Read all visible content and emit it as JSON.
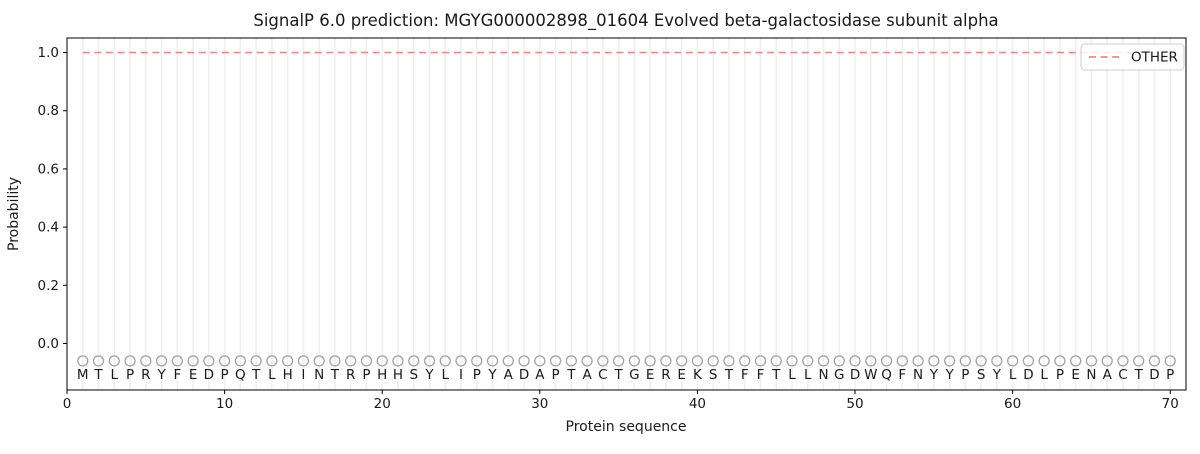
{
  "chart_data": {
    "type": "line",
    "title": "SignalP 6.0 prediction: MGYG000002898_01604 Evolved beta-galactosidase subunit alpha",
    "xlabel": "Protein sequence",
    "ylabel": "Probability",
    "xlim": [
      0,
      71
    ],
    "ylim": [
      -0.16,
      1.05
    ],
    "grid": "vertical-per-residue",
    "x_ticks": [
      0,
      10,
      20,
      30,
      40,
      50,
      60,
      70
    ],
    "x_tick_labels": [
      "0",
      "10",
      "20",
      "30",
      "40",
      "50",
      "60",
      "70"
    ],
    "y_ticks": [
      0.0,
      0.2,
      0.4,
      0.6,
      0.8,
      1.0
    ],
    "y_tick_labels": [
      "0.0",
      "0.2",
      "0.4",
      "0.6",
      "0.8",
      "1.0"
    ],
    "sequence": "MTLPRYFEDPQTLHINTRPHHSYLIPYADAPTACTGEREKSTFFTLLNGDWQFNYYPSYLDLPENACTDP",
    "sequence_positions": {
      "start": 1,
      "end": 70
    },
    "marker_y": -0.06,
    "letter_y": -0.105,
    "series": [
      {
        "name": "OTHER",
        "style": "dashed",
        "color": "#ee8888",
        "x_start": 1,
        "x_end": 70,
        "values": [
          1.0,
          1.0,
          1.0,
          1.0,
          1.0,
          1.0,
          1.0,
          1.0,
          1.0,
          1.0,
          1.0,
          1.0,
          1.0,
          1.0,
          1.0,
          1.0,
          1.0,
          1.0,
          1.0,
          1.0,
          1.0,
          1.0,
          1.0,
          1.0,
          1.0,
          1.0,
          1.0,
          1.0,
          1.0,
          1.0,
          1.0,
          1.0,
          1.0,
          1.0,
          1.0,
          1.0,
          1.0,
          1.0,
          1.0,
          1.0,
          1.0,
          1.0,
          1.0,
          1.0,
          1.0,
          1.0,
          1.0,
          1.0,
          1.0,
          1.0,
          1.0,
          1.0,
          1.0,
          1.0,
          1.0,
          1.0,
          1.0,
          1.0,
          1.0,
          1.0,
          1.0,
          1.0,
          1.0,
          1.0,
          1.0,
          1.0,
          1.0,
          1.0,
          1.0,
          1.0
        ]
      }
    ],
    "legend": {
      "position": "upper right",
      "entries": [
        {
          "label": "OTHER",
          "color": "#ee8888",
          "style": "dashed"
        }
      ]
    },
    "colors": {
      "other_line": "#ee8888",
      "residue_marker": "#a2a2a2",
      "gridline": "#efefef",
      "spine": "#000000",
      "text": "#1a1a1a",
      "legend_border": "#cccccc"
    }
  }
}
